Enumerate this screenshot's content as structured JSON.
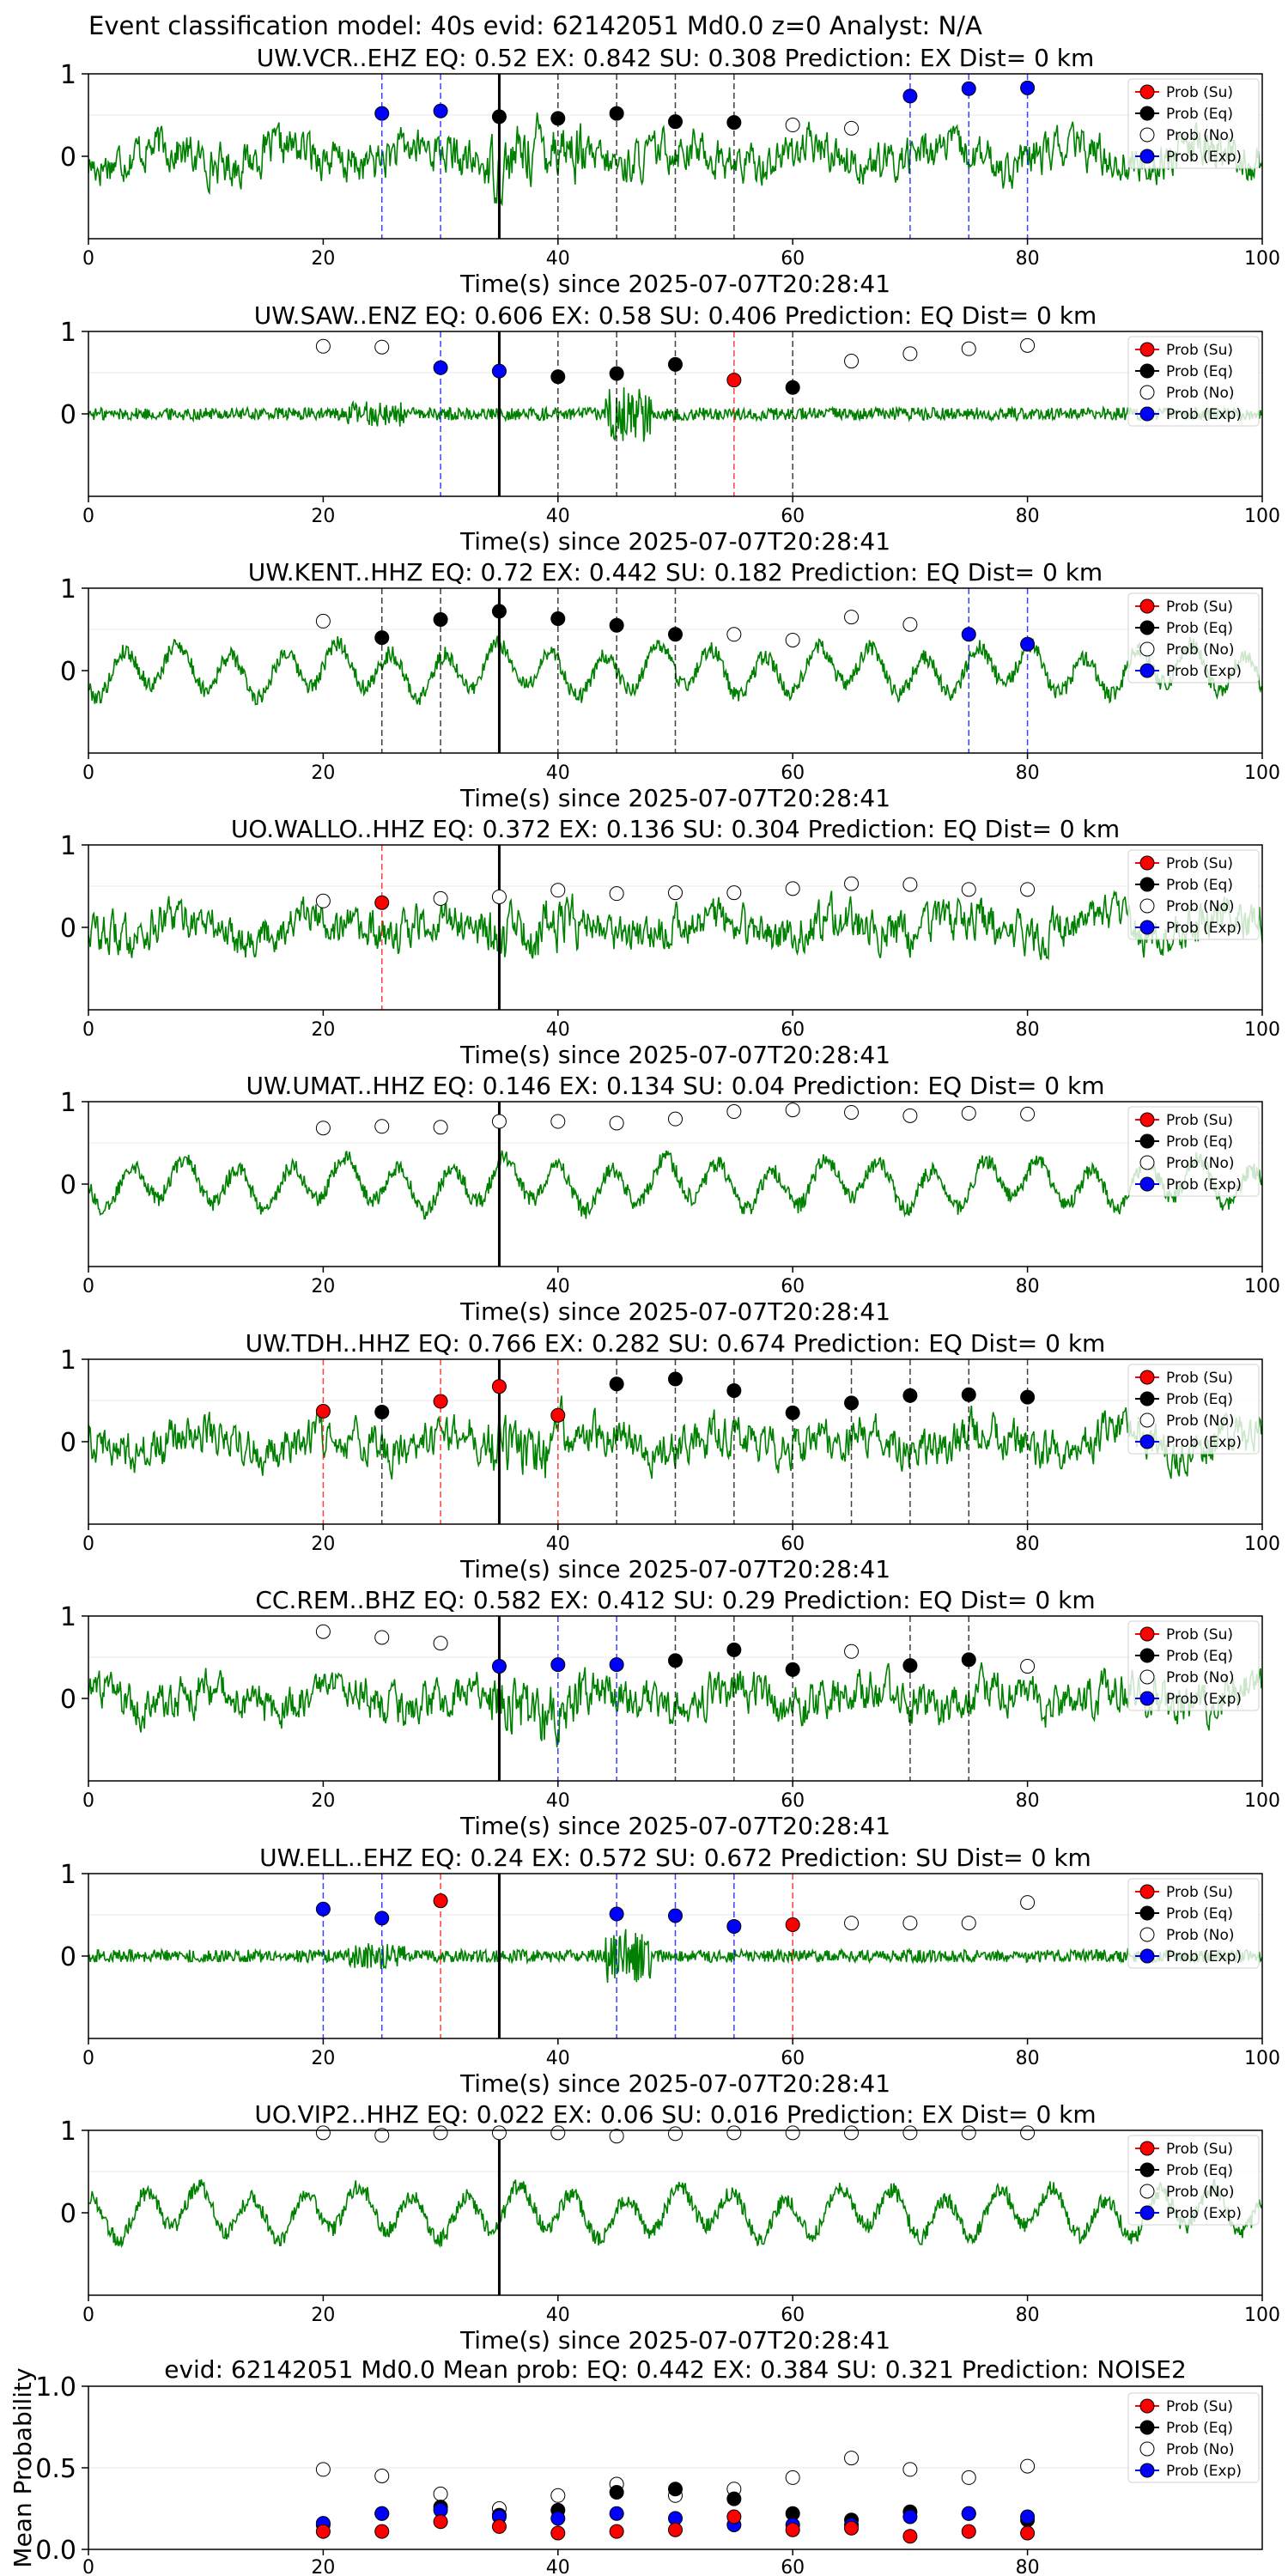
{
  "figure_title": "Event classification model: 40s evid: 62142051 Md0.0 z=0 Analyst: N/A",
  "colors": {
    "waveform": "#008000",
    "su": "#ff0000",
    "eq": "#000000",
    "no": "#ffffff",
    "exp": "#0000ff",
    "dash_red": "#ff0000",
    "dash_black": "#000000",
    "dash_blue": "#0000ff"
  },
  "legend_labels": [
    "Prob (Su)",
    "Prob (Eq)",
    "Prob (No)",
    "Prob (Exp)"
  ],
  "chart_data": [
    {
      "type": "line+scatter",
      "station": "UW.VCR..EHZ",
      "title": "UW.VCR..EHZ   EQ: 0.52  EX: 0.842  SU: 0.308   Prediction: EX    Dist= 0 km",
      "xlabel": "Time(s) since 2025-07-07T20:28:41",
      "xlim": [
        0,
        100
      ],
      "ylim": [
        -1,
        1
      ],
      "xticks": [
        "0",
        "20",
        "40",
        "60",
        "80",
        "100"
      ],
      "yticks": [
        "0",
        "1"
      ],
      "waveform_style": "noisy",
      "arrival_line_x": 35,
      "points": [
        {
          "x": 25,
          "p": 0.52,
          "cls": "exp"
        },
        {
          "x": 30,
          "p": 0.55,
          "cls": "exp"
        },
        {
          "x": 35,
          "p": 0.48,
          "cls": "eq"
        },
        {
          "x": 40,
          "p": 0.46,
          "cls": "eq"
        },
        {
          "x": 45,
          "p": 0.52,
          "cls": "eq"
        },
        {
          "x": 50,
          "p": 0.42,
          "cls": "eq"
        },
        {
          "x": 55,
          "p": 0.41,
          "cls": "eq"
        },
        {
          "x": 60,
          "p": 0.38,
          "cls": "no"
        },
        {
          "x": 65,
          "p": 0.34,
          "cls": "no"
        },
        {
          "x": 70,
          "p": 0.73,
          "cls": "exp"
        },
        {
          "x": 75,
          "p": 0.82,
          "cls": "exp"
        },
        {
          "x": 80,
          "p": 0.83,
          "cls": "exp"
        }
      ]
    },
    {
      "type": "line+scatter",
      "station": "UW.SAW..ENZ",
      "title": "UW.SAW..ENZ   EQ: 0.606  EX: 0.58  SU: 0.406   Prediction: EQ    Dist= 0 km",
      "xlabel": "Time(s) since 2025-07-07T20:28:41",
      "xlim": [
        0,
        100
      ],
      "ylim": [
        -1,
        1
      ],
      "xticks": [
        "0",
        "20",
        "40",
        "60",
        "80",
        "100"
      ],
      "yticks": [
        "0",
        "1"
      ],
      "waveform_style": "flat",
      "arrival_line_x": 35,
      "points": [
        {
          "x": 20,
          "p": 0.82,
          "cls": "no"
        },
        {
          "x": 25,
          "p": 0.81,
          "cls": "no"
        },
        {
          "x": 30,
          "p": 0.56,
          "cls": "exp"
        },
        {
          "x": 35,
          "p": 0.52,
          "cls": "exp"
        },
        {
          "x": 40,
          "p": 0.45,
          "cls": "eq"
        },
        {
          "x": 45,
          "p": 0.49,
          "cls": "eq"
        },
        {
          "x": 50,
          "p": 0.6,
          "cls": "eq"
        },
        {
          "x": 55,
          "p": 0.41,
          "cls": "su"
        },
        {
          "x": 60,
          "p": 0.32,
          "cls": "eq"
        },
        {
          "x": 65,
          "p": 0.64,
          "cls": "no"
        },
        {
          "x": 70,
          "p": 0.73,
          "cls": "no"
        },
        {
          "x": 75,
          "p": 0.79,
          "cls": "no"
        },
        {
          "x": 80,
          "p": 0.83,
          "cls": "no"
        }
      ]
    },
    {
      "type": "line+scatter",
      "station": "UW.KENT..HHZ",
      "title": "UW.KENT..HHZ   EQ: 0.72  EX: 0.442  SU: 0.182   Prediction: EQ    Dist= 0 km",
      "xlabel": "Time(s) since 2025-07-07T20:28:41",
      "xlim": [
        0,
        100
      ],
      "ylim": [
        -1,
        1
      ],
      "xticks": [
        "0",
        "20",
        "40",
        "60",
        "80",
        "100"
      ],
      "yticks": [
        "0",
        "1"
      ],
      "waveform_style": "wavy",
      "arrival_line_x": 35,
      "points": [
        {
          "x": 20,
          "p": 0.6,
          "cls": "no"
        },
        {
          "x": 25,
          "p": 0.4,
          "cls": "eq"
        },
        {
          "x": 30,
          "p": 0.62,
          "cls": "eq"
        },
        {
          "x": 35,
          "p": 0.72,
          "cls": "eq"
        },
        {
          "x": 40,
          "p": 0.63,
          "cls": "eq"
        },
        {
          "x": 45,
          "p": 0.55,
          "cls": "eq"
        },
        {
          "x": 50,
          "p": 0.44,
          "cls": "eq"
        },
        {
          "x": 55,
          "p": 0.44,
          "cls": "no"
        },
        {
          "x": 60,
          "p": 0.37,
          "cls": "no"
        },
        {
          "x": 65,
          "p": 0.65,
          "cls": "no"
        },
        {
          "x": 70,
          "p": 0.56,
          "cls": "no"
        },
        {
          "x": 75,
          "p": 0.44,
          "cls": "exp"
        },
        {
          "x": 80,
          "p": 0.32,
          "cls": "exp"
        }
      ]
    },
    {
      "type": "line+scatter",
      "station": "UO.WALLO..HHZ",
      "title": "UO.WALLO..HHZ   EQ: 0.372  EX: 0.136  SU: 0.304   Prediction: EQ    Dist= 0 km",
      "xlabel": "Time(s) since 2025-07-07T20:28:41",
      "xlim": [
        0,
        100
      ],
      "ylim": [
        -1,
        1
      ],
      "xticks": [
        "0",
        "20",
        "40",
        "60",
        "80",
        "100"
      ],
      "yticks": [
        "0",
        "1"
      ],
      "waveform_style": "noisy",
      "arrival_line_x": 35,
      "points": [
        {
          "x": 20,
          "p": 0.32,
          "cls": "no"
        },
        {
          "x": 25,
          "p": 0.3,
          "cls": "su"
        },
        {
          "x": 30,
          "p": 0.35,
          "cls": "no"
        },
        {
          "x": 35,
          "p": 0.37,
          "cls": "no"
        },
        {
          "x": 40,
          "p": 0.45,
          "cls": "no"
        },
        {
          "x": 45,
          "p": 0.41,
          "cls": "no"
        },
        {
          "x": 50,
          "p": 0.42,
          "cls": "no"
        },
        {
          "x": 55,
          "p": 0.42,
          "cls": "no"
        },
        {
          "x": 60,
          "p": 0.47,
          "cls": "no"
        },
        {
          "x": 65,
          "p": 0.53,
          "cls": "no"
        },
        {
          "x": 70,
          "p": 0.52,
          "cls": "no"
        },
        {
          "x": 75,
          "p": 0.46,
          "cls": "no"
        },
        {
          "x": 80,
          "p": 0.46,
          "cls": "no"
        }
      ]
    },
    {
      "type": "line+scatter",
      "station": "UW.UMAT..HHZ",
      "title": "UW.UMAT..HHZ   EQ: 0.146  EX: 0.134  SU: 0.04   Prediction: EQ    Dist= 0 km",
      "xlabel": "Time(s) since 2025-07-07T20:28:41",
      "xlim": [
        0,
        100
      ],
      "ylim": [
        -1,
        1
      ],
      "xticks": [
        "0",
        "20",
        "40",
        "60",
        "80",
        "100"
      ],
      "yticks": [
        "0",
        "1"
      ],
      "waveform_style": "wavy",
      "arrival_line_x": 35,
      "points": [
        {
          "x": 20,
          "p": 0.68,
          "cls": "no"
        },
        {
          "x": 25,
          "p": 0.7,
          "cls": "no"
        },
        {
          "x": 30,
          "p": 0.69,
          "cls": "no"
        },
        {
          "x": 35,
          "p": 0.76,
          "cls": "no"
        },
        {
          "x": 40,
          "p": 0.76,
          "cls": "no"
        },
        {
          "x": 45,
          "p": 0.74,
          "cls": "no"
        },
        {
          "x": 50,
          "p": 0.79,
          "cls": "no"
        },
        {
          "x": 55,
          "p": 0.88,
          "cls": "no"
        },
        {
          "x": 60,
          "p": 0.9,
          "cls": "no"
        },
        {
          "x": 65,
          "p": 0.87,
          "cls": "no"
        },
        {
          "x": 70,
          "p": 0.83,
          "cls": "no"
        },
        {
          "x": 75,
          "p": 0.86,
          "cls": "no"
        },
        {
          "x": 80,
          "p": 0.85,
          "cls": "no"
        }
      ]
    },
    {
      "type": "line+scatter",
      "station": "UW.TDH..HHZ",
      "title": "UW.TDH..HHZ   EQ: 0.766  EX: 0.282  SU: 0.674   Prediction: EQ    Dist= 0 km",
      "xlabel": "Time(s) since 2025-07-07T20:28:41",
      "xlim": [
        0,
        100
      ],
      "ylim": [
        -1,
        1
      ],
      "xticks": [
        "0",
        "20",
        "40",
        "60",
        "80",
        "100"
      ],
      "yticks": [
        "0",
        "1"
      ],
      "waveform_style": "noisy",
      "arrival_line_x": 35,
      "points": [
        {
          "x": 20,
          "p": 0.37,
          "cls": "su"
        },
        {
          "x": 25,
          "p": 0.36,
          "cls": "eq"
        },
        {
          "x": 30,
          "p": 0.49,
          "cls": "su"
        },
        {
          "x": 35,
          "p": 0.67,
          "cls": "su"
        },
        {
          "x": 40,
          "p": 0.32,
          "cls": "su"
        },
        {
          "x": 45,
          "p": 0.7,
          "cls": "eq"
        },
        {
          "x": 50,
          "p": 0.76,
          "cls": "eq"
        },
        {
          "x": 55,
          "p": 0.62,
          "cls": "eq"
        },
        {
          "x": 60,
          "p": 0.35,
          "cls": "eq"
        },
        {
          "x": 65,
          "p": 0.47,
          "cls": "eq"
        },
        {
          "x": 70,
          "p": 0.56,
          "cls": "eq"
        },
        {
          "x": 75,
          "p": 0.57,
          "cls": "eq"
        },
        {
          "x": 80,
          "p": 0.54,
          "cls": "eq"
        }
      ]
    },
    {
      "type": "line+scatter",
      "station": "CC.REM..BHZ",
      "title": "CC.REM..BHZ   EQ: 0.582  EX: 0.412  SU: 0.29   Prediction: EQ    Dist= 0 km",
      "xlabel": "Time(s) since 2025-07-07T20:28:41",
      "xlim": [
        0,
        100
      ],
      "ylim": [
        -1,
        1
      ],
      "xticks": [
        "0",
        "20",
        "40",
        "60",
        "80",
        "100"
      ],
      "yticks": [
        "0",
        "1"
      ],
      "waveform_style": "noisy",
      "arrival_line_x": 35,
      "points": [
        {
          "x": 20,
          "p": 0.81,
          "cls": "no"
        },
        {
          "x": 25,
          "p": 0.74,
          "cls": "no"
        },
        {
          "x": 30,
          "p": 0.67,
          "cls": "no"
        },
        {
          "x": 35,
          "p": 0.39,
          "cls": "exp"
        },
        {
          "x": 40,
          "p": 0.41,
          "cls": "exp"
        },
        {
          "x": 45,
          "p": 0.41,
          "cls": "exp"
        },
        {
          "x": 50,
          "p": 0.46,
          "cls": "eq"
        },
        {
          "x": 55,
          "p": 0.59,
          "cls": "eq"
        },
        {
          "x": 60,
          "p": 0.35,
          "cls": "eq"
        },
        {
          "x": 65,
          "p": 0.57,
          "cls": "no"
        },
        {
          "x": 70,
          "p": 0.4,
          "cls": "eq"
        },
        {
          "x": 75,
          "p": 0.47,
          "cls": "eq"
        },
        {
          "x": 80,
          "p": 0.39,
          "cls": "no"
        }
      ]
    },
    {
      "type": "line+scatter",
      "station": "UW.ELL..EHZ",
      "title": "UW.ELL..EHZ   EQ: 0.24  EX: 0.572  SU: 0.672   Prediction: SU    Dist= 0 km",
      "xlabel": "Time(s) since 2025-07-07T20:28:41",
      "xlim": [
        0,
        100
      ],
      "ylim": [
        -1,
        1
      ],
      "xticks": [
        "0",
        "20",
        "40",
        "60",
        "80",
        "100"
      ],
      "yticks": [
        "0",
        "1"
      ],
      "waveform_style": "flat",
      "arrival_line_x": 35,
      "points": [
        {
          "x": 20,
          "p": 0.57,
          "cls": "exp"
        },
        {
          "x": 25,
          "p": 0.46,
          "cls": "exp"
        },
        {
          "x": 30,
          "p": 0.67,
          "cls": "su"
        },
        {
          "x": 45,
          "p": 0.51,
          "cls": "exp"
        },
        {
          "x": 50,
          "p": 0.49,
          "cls": "exp"
        },
        {
          "x": 55,
          "p": 0.36,
          "cls": "exp"
        },
        {
          "x": 60,
          "p": 0.38,
          "cls": "su"
        },
        {
          "x": 65,
          "p": 0.4,
          "cls": "no"
        },
        {
          "x": 70,
          "p": 0.4,
          "cls": "no"
        },
        {
          "x": 75,
          "p": 0.4,
          "cls": "no"
        },
        {
          "x": 80,
          "p": 0.65,
          "cls": "no"
        }
      ]
    },
    {
      "type": "line+scatter",
      "station": "UO.VIP2..HHZ",
      "title": "UO.VIP2..HHZ   EQ: 0.022  EX: 0.06  SU: 0.016   Prediction: EX    Dist= 0 km",
      "xlabel": "Time(s) since 2025-07-07T20:28:41",
      "xlim": [
        0,
        100
      ],
      "ylim": [
        -1,
        1
      ],
      "xticks": [
        "0",
        "20",
        "40",
        "60",
        "80",
        "100"
      ],
      "yticks": [
        "0",
        "1"
      ],
      "waveform_style": "wavy",
      "arrival_line_x": 35,
      "points": [
        {
          "x": 20,
          "p": 0.97,
          "cls": "no"
        },
        {
          "x": 25,
          "p": 0.94,
          "cls": "no"
        },
        {
          "x": 30,
          "p": 0.97,
          "cls": "no"
        },
        {
          "x": 35,
          "p": 0.97,
          "cls": "no"
        },
        {
          "x": 40,
          "p": 0.97,
          "cls": "no"
        },
        {
          "x": 45,
          "p": 0.93,
          "cls": "no"
        },
        {
          "x": 50,
          "p": 0.96,
          "cls": "no"
        },
        {
          "x": 55,
          "p": 0.97,
          "cls": "no"
        },
        {
          "x": 60,
          "p": 0.97,
          "cls": "no"
        },
        {
          "x": 65,
          "p": 0.97,
          "cls": "no"
        },
        {
          "x": 70,
          "p": 0.97,
          "cls": "no"
        },
        {
          "x": 75,
          "p": 0.97,
          "cls": "no"
        },
        {
          "x": 80,
          "p": 0.97,
          "cls": "no"
        }
      ]
    },
    {
      "type": "scatter",
      "title": "evid: 62142051  Md0.0   Mean prob:    EQ: 0.442  EX: 0.384  SU: 0.321   Prediction: NOISE2",
      "ylabel": "Mean Probability",
      "xlim": [
        0,
        100
      ],
      "ylim": [
        0,
        1
      ],
      "xticks": [
        "0",
        "20",
        "40",
        "60",
        "80"
      ],
      "yticks": [
        "0.0",
        "0.5",
        "1.0"
      ],
      "x": [
        20,
        25,
        30,
        35,
        40,
        45,
        50,
        55,
        60,
        65,
        70,
        75,
        80
      ],
      "series": [
        {
          "cls": "no",
          "values": [
            0.49,
            0.45,
            0.34,
            0.25,
            0.33,
            0.4,
            0.33,
            0.37,
            0.44,
            0.56,
            0.49,
            0.44,
            0.51
          ]
        },
        {
          "cls": "eq",
          "values": [
            0.15,
            0.22,
            0.26,
            0.21,
            0.24,
            0.35,
            0.37,
            0.31,
            0.22,
            0.18,
            0.23,
            0.22,
            0.18
          ]
        },
        {
          "cls": "exp",
          "values": [
            0.16,
            0.22,
            0.24,
            0.2,
            0.19,
            0.22,
            0.19,
            0.15,
            0.15,
            0.15,
            0.2,
            0.22,
            0.2
          ]
        },
        {
          "cls": "su",
          "values": [
            0.11,
            0.11,
            0.17,
            0.14,
            0.1,
            0.11,
            0.12,
            0.2,
            0.12,
            0.13,
            0.08,
            0.11,
            0.1
          ]
        }
      ]
    }
  ]
}
